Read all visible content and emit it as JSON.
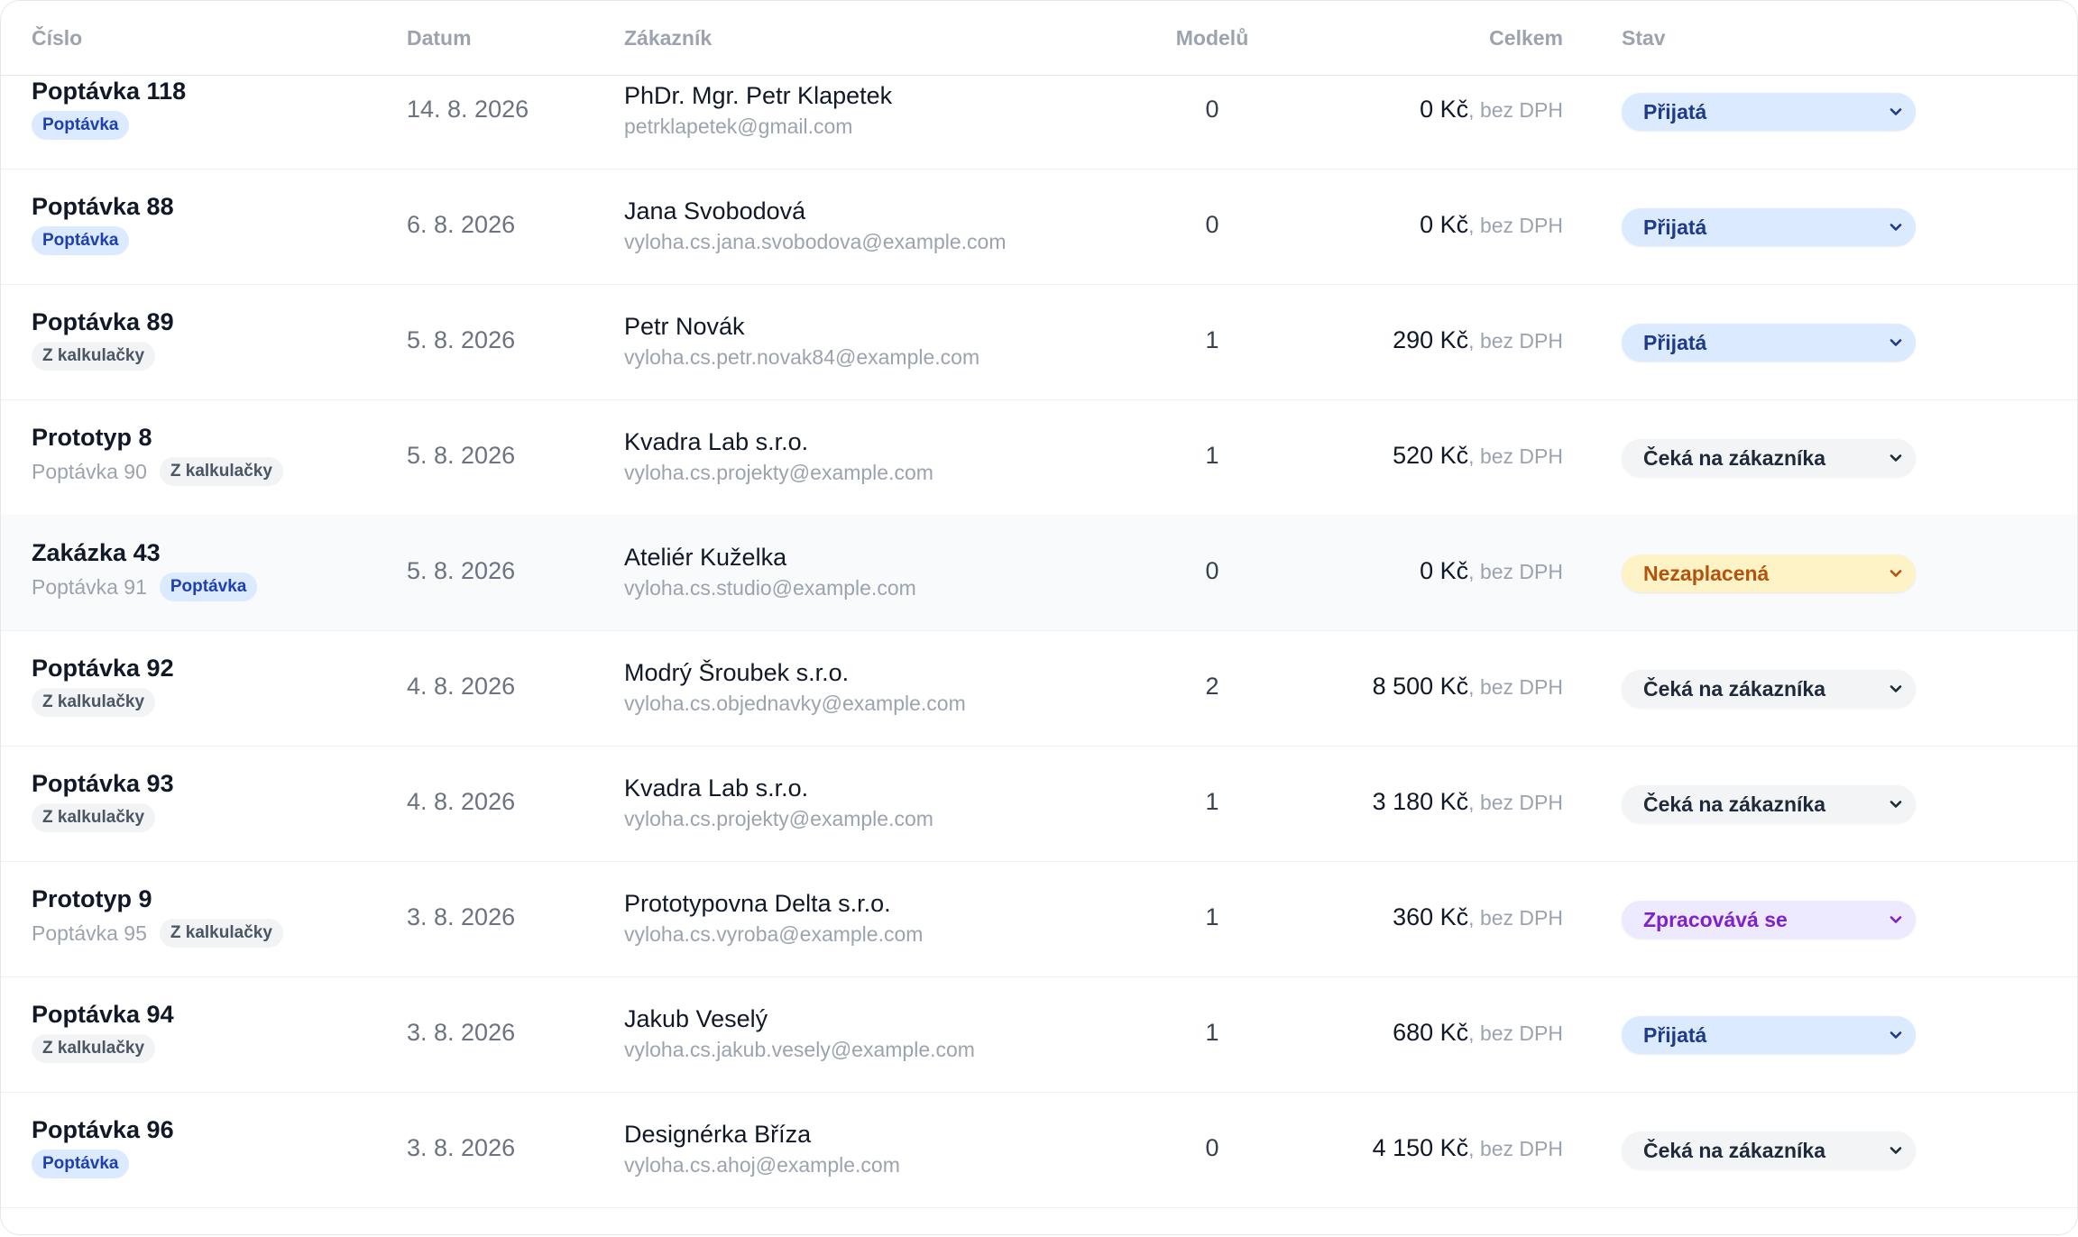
{
  "columns": {
    "number": "Číslo",
    "date": "Datum",
    "customer": "Zákazník",
    "models": "Modelů",
    "total": "Celkem",
    "status": "Stav"
  },
  "colors": {
    "status_prijata": "#dbeafe",
    "status_ceka": "#f3f4f6",
    "status_nezaplacena": "#fef3c7",
    "status_zpracovava": "#ede9fe",
    "tag_poptavka": "#dbeafe",
    "tag_kalkulacky": "#f1f3f5"
  },
  "rows": [
    {
      "title": "Poptávka 118",
      "ref": "",
      "tag": "Poptávka",
      "tag_style": "blue",
      "date": "14. 8. 2026",
      "customer_name": "PhDr. Mgr. Petr Klapetek",
      "customer_email": "petrklapetek@gmail.com",
      "models": "0",
      "total": "0 Kč",
      "vat_note": ", bez DPH",
      "status": "Přijatá",
      "status_style": "blue",
      "highlighted": false
    },
    {
      "title": "Poptávka 88",
      "ref": "",
      "tag": "Poptávka",
      "tag_style": "blue",
      "date": "6. 8. 2026",
      "customer_name": "Jana Svobodová",
      "customer_email": "vyloha.cs.jana.svobodova@example.com",
      "models": "0",
      "total": "0 Kč",
      "vat_note": ", bez DPH",
      "status": "Přijatá",
      "status_style": "blue",
      "highlighted": false
    },
    {
      "title": "Poptávka 89",
      "ref": "",
      "tag": "Z kalkulačky",
      "tag_style": "gray",
      "date": "5. 8. 2026",
      "customer_name": "Petr Novák",
      "customer_email": "vyloha.cs.petr.novak84@example.com",
      "models": "1",
      "total": "290 Kč",
      "vat_note": ", bez DPH",
      "status": "Přijatá",
      "status_style": "blue",
      "highlighted": false
    },
    {
      "title": "Prototyp 8",
      "ref": "Poptávka 90",
      "tag": "Z kalkulačky",
      "tag_style": "gray",
      "date": "5. 8. 2026",
      "customer_name": "Kvadra Lab s.r.o.",
      "customer_email": "vyloha.cs.projekty@example.com",
      "models": "1",
      "total": "520 Kč",
      "vat_note": ", bez DPH",
      "status": "Čeká na zákazníka",
      "status_style": "gray",
      "highlighted": false
    },
    {
      "title": "Zakázka 43",
      "ref": "Poptávka 91",
      "tag": "Poptávka",
      "tag_style": "blue",
      "date": "5. 8. 2026",
      "customer_name": "Ateliér Kuželka",
      "customer_email": "vyloha.cs.studio@example.com",
      "models": "0",
      "total": "0 Kč",
      "vat_note": ", bez DPH",
      "status": "Nezaplacená",
      "status_style": "amber",
      "highlighted": true
    },
    {
      "title": "Poptávka 92",
      "ref": "",
      "tag": "Z kalkulačky",
      "tag_style": "gray",
      "date": "4. 8. 2026",
      "customer_name": "Modrý Šroubek s.r.o.",
      "customer_email": "vyloha.cs.objednavky@example.com",
      "models": "2",
      "total": "8 500 Kč",
      "vat_note": ", bez DPH",
      "status": "Čeká na zákazníka",
      "status_style": "gray",
      "highlighted": false
    },
    {
      "title": "Poptávka 93",
      "ref": "",
      "tag": "Z kalkulačky",
      "tag_style": "gray",
      "date": "4. 8. 2026",
      "customer_name": "Kvadra Lab s.r.o.",
      "customer_email": "vyloha.cs.projekty@example.com",
      "models": "1",
      "total": "3 180 Kč",
      "vat_note": ", bez DPH",
      "status": "Čeká na zákazníka",
      "status_style": "gray",
      "highlighted": false
    },
    {
      "title": "Prototyp 9",
      "ref": "Poptávka 95",
      "tag": "Z kalkulačky",
      "tag_style": "gray",
      "date": "3. 8. 2026",
      "customer_name": "Prototypovna Delta s.r.o.",
      "customer_email": "vyloha.cs.vyroba@example.com",
      "models": "1",
      "total": "360 Kč",
      "vat_note": ", bez DPH",
      "status": "Zpracovává se",
      "status_style": "violet",
      "highlighted": false
    },
    {
      "title": "Poptávka 94",
      "ref": "",
      "tag": "Z kalkulačky",
      "tag_style": "gray",
      "date": "3. 8. 2026",
      "customer_name": "Jakub Veselý",
      "customer_email": "vyloha.cs.jakub.vesely@example.com",
      "models": "1",
      "total": "680 Kč",
      "vat_note": ", bez DPH",
      "status": "Přijatá",
      "status_style": "blue",
      "highlighted": false
    },
    {
      "title": "Poptávka 96",
      "ref": "",
      "tag": "Poptávka",
      "tag_style": "blue",
      "date": "3. 8. 2026",
      "customer_name": "Designérka Bříza",
      "customer_email": "vyloha.cs.ahoj@example.com",
      "models": "0",
      "total": "4 150 Kč",
      "vat_note": ", bez DPH",
      "status": "Čeká na zákazníka",
      "status_style": "gray",
      "highlighted": false
    }
  ]
}
